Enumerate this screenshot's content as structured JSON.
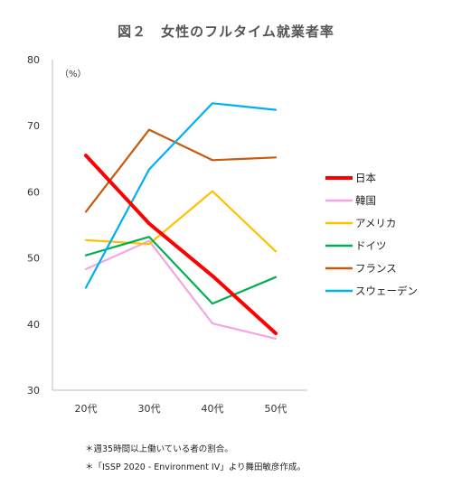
{
  "title": "図２　女性のフルタイム就業者率",
  "notes": [
    "＊週35時間以上働いている者の割合。",
    "＊「ISSP 2020 - Environment IV」より舞田敏彦作成。"
  ],
  "chart_data": {
    "type": "line",
    "title": "図２　女性のフルタイム就業者率",
    "ylabel": "（%）",
    "xlabel": "",
    "categories": [
      "20代",
      "30代",
      "40代",
      "50代"
    ],
    "ylim": [
      30,
      80
    ],
    "yticks": [
      30,
      40,
      50,
      60,
      70,
      80
    ],
    "grid": false,
    "legend": "right",
    "series": [
      {
        "name": "日本",
        "color": "#ff0000",
        "width": 4,
        "values": [
          65.5,
          55.2,
          47.3,
          38.6
        ]
      },
      {
        "name": "韓国",
        "color": "#f4a6e2",
        "width": 2.2,
        "values": [
          48.3,
          52.6,
          40.1,
          37.8
        ]
      },
      {
        "name": "アメリカ",
        "color": "#ffc000",
        "width": 2.2,
        "values": [
          52.7,
          52.1,
          60.1,
          51.0
        ]
      },
      {
        "name": "ドイツ",
        "color": "#00b050",
        "width": 2.2,
        "values": [
          50.4,
          53.2,
          43.1,
          47.1
        ]
      },
      {
        "name": "フランス",
        "color": "#c55a11",
        "width": 2.2,
        "values": [
          57.0,
          69.4,
          64.8,
          65.2
        ]
      },
      {
        "name": "スウェーデン",
        "color": "#00b0f0",
        "width": 2.2,
        "values": [
          45.5,
          63.4,
          73.4,
          72.4
        ]
      }
    ]
  }
}
